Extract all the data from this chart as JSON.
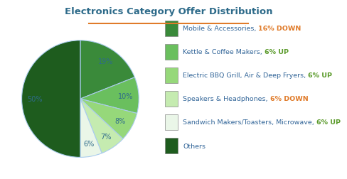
{
  "title": "Electronics Category Offer Distribution",
  "title_color": "#2e6b8a",
  "title_underline_color": "#e07b2a",
  "slices": [
    19,
    10,
    8,
    7,
    6,
    50
  ],
  "slice_colors": [
    "#3a8a3a",
    "#6abf5e",
    "#96d87a",
    "#c5ebb0",
    "#eaf6e8",
    "#1e5c1e"
  ],
  "slice_labels": [
    "19%",
    "10%",
    "8%",
    "7%",
    "6%",
    "50%"
  ],
  "label_r": 0.78,
  "legend_items": [
    {
      "label_main": "Mobile & Accessories, ",
      "label_accent": "16% DOWN",
      "accent_color": "#e07b2a",
      "box_color": "#3a8a3a"
    },
    {
      "label_main": "Kettle & Coffee Makers, ",
      "label_accent": "6% UP",
      "accent_color": "#5a9a2a",
      "box_color": "#6abf5e"
    },
    {
      "label_main": "Electric BBQ Grill, Air & Deep Fryers, ",
      "label_accent": "6% UP",
      "accent_color": "#5a9a2a",
      "box_color": "#96d87a"
    },
    {
      "label_main": "Speakers & Headphones, ",
      "label_accent": "6% DOWN",
      "accent_color": "#e07b2a",
      "box_color": "#c5ebb0"
    },
    {
      "label_main": "Sandwich Makers/Toasters, Microwave, ",
      "label_accent": "6% UP",
      "accent_color": "#5a9a2a",
      "box_color": "#eaf6e8"
    },
    {
      "label_main": "Others",
      "label_accent": "",
      "accent_color": "#336699",
      "box_color": "#1e5c1e"
    }
  ],
  "text_color": "#336699",
  "label_color": "#2e6b8a",
  "background_color": "#ffffff",
  "startangle": 90,
  "wedge_edgecolor": "#aaccee",
  "wedge_linewidth": 0.8
}
